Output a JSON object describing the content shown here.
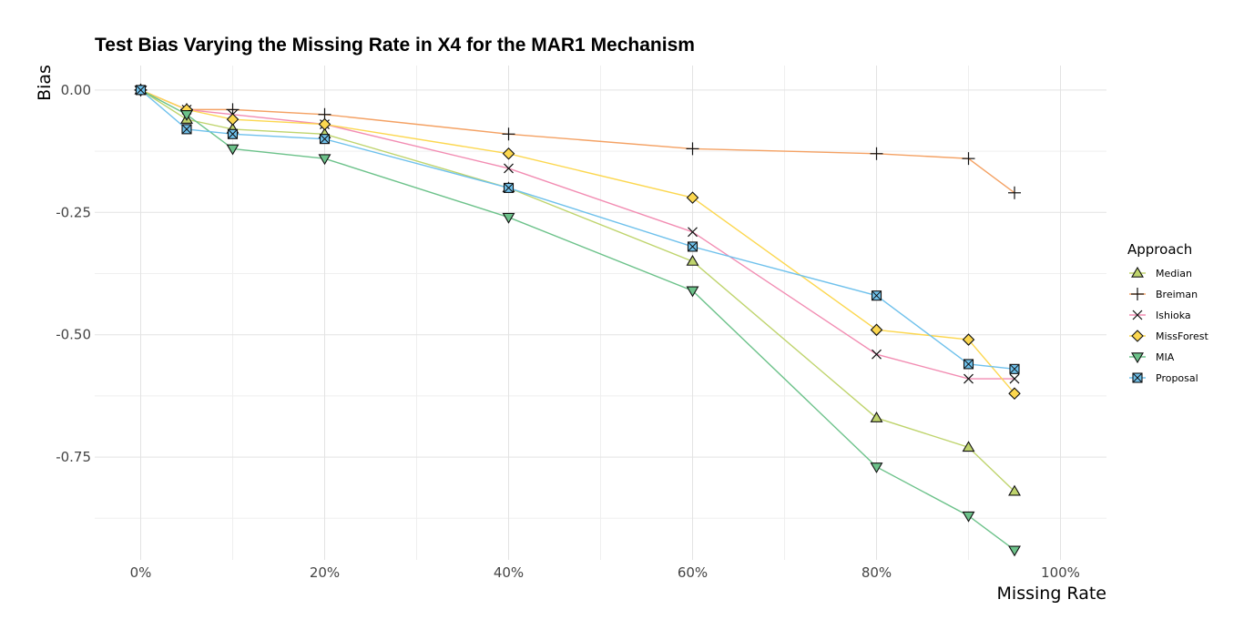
{
  "chart_data": {
    "type": "line",
    "title": "Test Bias Varying the Missing Rate in X4 for the MAR1 Mechanism",
    "xlabel": "Missing Rate",
    "ylabel": "Bias",
    "xlim": [
      -5,
      105
    ],
    "ylim": [
      -0.96,
      0.05
    ],
    "x_ticks": [
      0,
      20,
      40,
      60,
      80,
      100
    ],
    "x_tick_labels": [
      "0%",
      "20%",
      "40%",
      "60%",
      "80%",
      "100%"
    ],
    "y_ticks": [
      0.0,
      -0.25,
      -0.5,
      -0.75
    ],
    "y_tick_labels": [
      "0.00",
      "-0.25",
      "-0.50",
      "-0.75"
    ],
    "grid": true,
    "legend": {
      "title": "Approach",
      "position": "right"
    },
    "x": [
      0,
      5,
      10,
      20,
      40,
      60,
      80,
      90,
      95
    ],
    "series": [
      {
        "name": "Median",
        "color": "#bfd46d",
        "shape": "triangle-up",
        "values": [
          0.0,
          -0.06,
          -0.08,
          -0.09,
          -0.2,
          -0.35,
          -0.67,
          -0.73,
          -0.82
        ]
      },
      {
        "name": "Breiman",
        "color": "#f4a163",
        "shape": "plus",
        "values": [
          0.0,
          -0.04,
          -0.04,
          -0.05,
          -0.09,
          -0.12,
          -0.13,
          -0.14,
          -0.21
        ]
      },
      {
        "name": "Ishioka",
        "color": "#f28cb2",
        "shape": "cross",
        "values": [
          0.0,
          -0.04,
          -0.05,
          -0.07,
          -0.16,
          -0.29,
          -0.54,
          -0.59,
          -0.59
        ]
      },
      {
        "name": "MissForest",
        "color": "#fcd74f",
        "shape": "diamond",
        "values": [
          0.0,
          -0.04,
          -0.06,
          -0.07,
          -0.13,
          -0.22,
          -0.49,
          -0.51,
          -0.62
        ]
      },
      {
        "name": "MIA",
        "color": "#6cc28a",
        "shape": "triangle-down",
        "values": [
          0.0,
          -0.05,
          -0.12,
          -0.14,
          -0.26,
          -0.41,
          -0.77,
          -0.87,
          -0.94
        ]
      },
      {
        "name": "Proposal",
        "color": "#6fc1ec",
        "shape": "square-cross",
        "values": [
          0.0,
          -0.08,
          -0.09,
          -0.1,
          -0.2,
          -0.32,
          -0.42,
          -0.56,
          -0.57
        ]
      }
    ]
  }
}
